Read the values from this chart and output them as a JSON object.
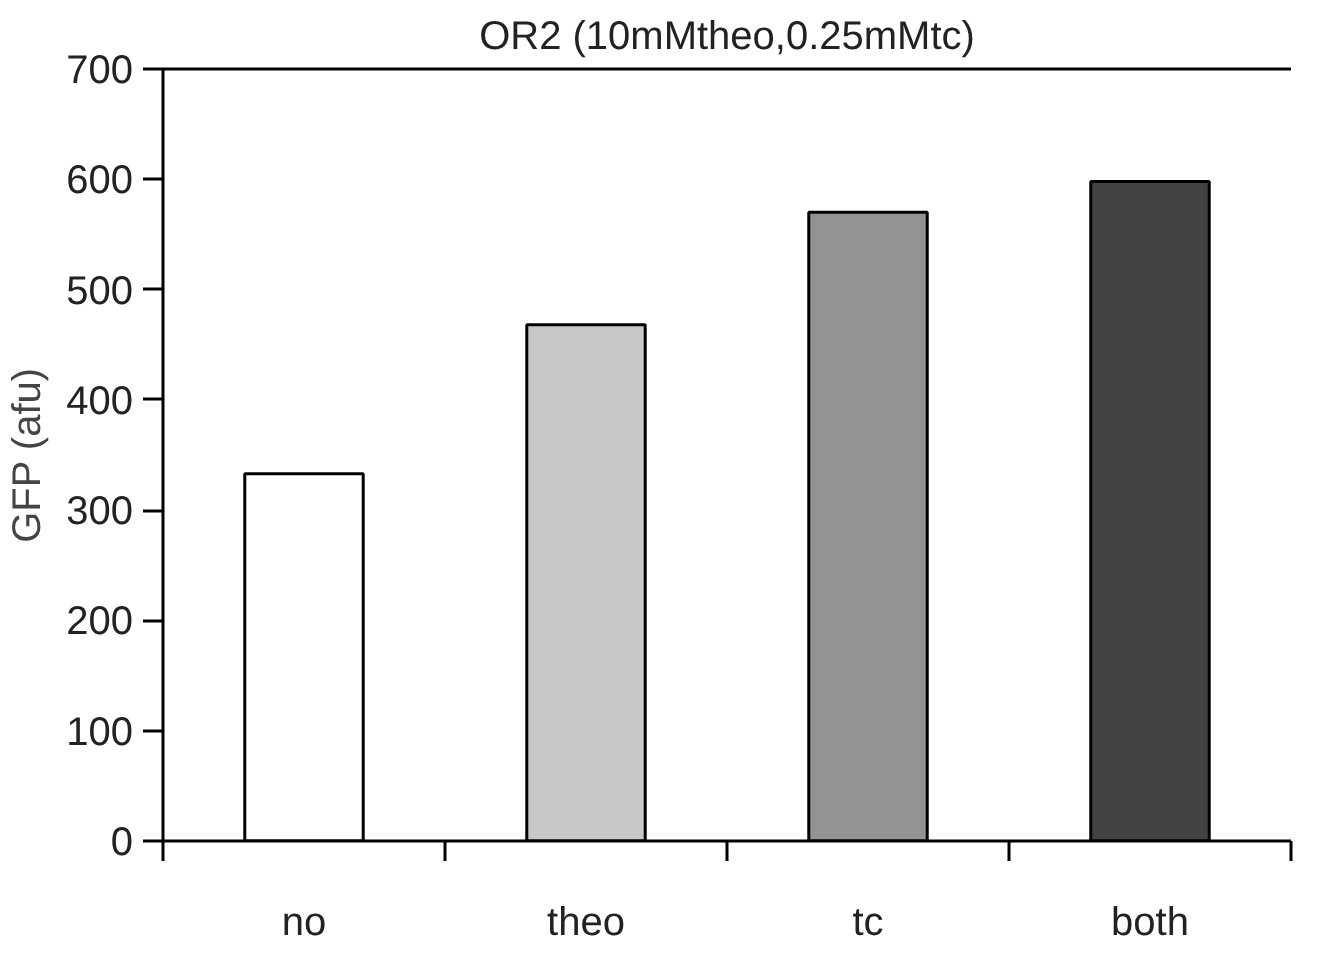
{
  "chart_data": {
    "type": "bar",
    "title": "OR2 (10mMtheo,0.25mMtc)",
    "ylabel": "GFP (afu)",
    "categories": [
      "no",
      "theo",
      "tc",
      "both"
    ],
    "values": [
      333,
      468,
      570,
      598
    ],
    "colors": [
      "#ffffff",
      "#c8c8c8",
      "#939393",
      "#424242"
    ],
    "ylim": [
      0,
      700
    ],
    "yticks": [
      0,
      100,
      200,
      300,
      400,
      500,
      600,
      700
    ],
    "grid": false
  }
}
